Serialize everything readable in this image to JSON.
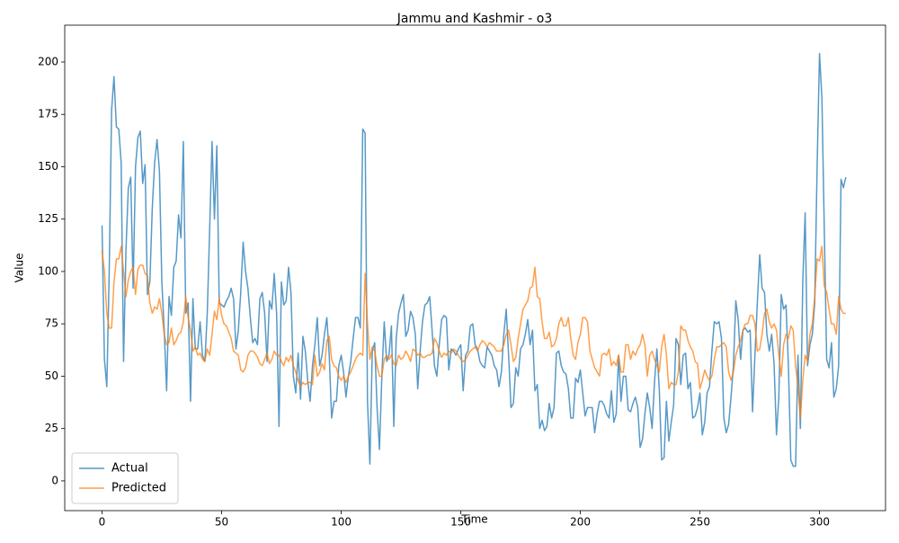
{
  "chart_data": {
    "type": "line",
    "title": "Jammu and Kashmir - o3",
    "x_label": "Time",
    "y_label": "Value",
    "xlim": [
      -15.6,
      327.6
    ],
    "xticks": [
      0,
      50,
      100,
      150,
      200,
      250,
      300
    ],
    "ylim": [
      -14.2,
      217.6
    ],
    "yticks": [
      0,
      25,
      50,
      75,
      100,
      125,
      150,
      175,
      200
    ],
    "grid": false,
    "legend": "lower left",
    "series": [
      {
        "name": "Actual",
        "color": "#1f77b4",
        "values": [
          122,
          58,
          45,
          100,
          177,
          193,
          169,
          168,
          152,
          57,
          110,
          140,
          145,
          92,
          150,
          164,
          167,
          142,
          151,
          89,
          95,
          130,
          152,
          163,
          148,
          95,
          72,
          43,
          88,
          79,
          102,
          105,
          127,
          116,
          162,
          80,
          85,
          38,
          87,
          63,
          63,
          76,
          60,
          57,
          80,
          120,
          162,
          125,
          160,
          85,
          84,
          83,
          86,
          88,
          92,
          87,
          63,
          72,
          90,
          114,
          100,
          92,
          78,
          66,
          68,
          65,
          87,
          90,
          80,
          57,
          86,
          82,
          99,
          80,
          26,
          95,
          84,
          86,
          102,
          90,
          50,
          42,
          61,
          39,
          69,
          62,
          48,
          38,
          55,
          65,
          78,
          55,
          60,
          70,
          78,
          60,
          30,
          38,
          38,
          55,
          60,
          52,
          40,
          50,
          57,
          68,
          78,
          78,
          73,
          168,
          166,
          38,
          8,
          62,
          66,
          35,
          15,
          50,
          76,
          57,
          60,
          74,
          26,
          68,
          80,
          85,
          89,
          69,
          72,
          81,
          78,
          70,
          44,
          62,
          76,
          84,
          85,
          88,
          72,
          55,
          50,
          65,
          77,
          79,
          78,
          53,
          63,
          62,
          60,
          63,
          65,
          43,
          60,
          62,
          74,
          75,
          65,
          63,
          57,
          55,
          54,
          64,
          62,
          60,
          55,
          53,
          45,
          52,
          70,
          82,
          60,
          35,
          37,
          54,
          50,
          63,
          65,
          70,
          77,
          65,
          72,
          43,
          46,
          25,
          29,
          24,
          26,
          37,
          30,
          35,
          61,
          62,
          55,
          52,
          51,
          44,
          30,
          30,
          49,
          47,
          53,
          42,
          31,
          35,
          35,
          35,
          23,
          32,
          38,
          38,
          36,
          32,
          30,
          43,
          28,
          32,
          60,
          38,
          50,
          50,
          34,
          33,
          37,
          40,
          35,
          16,
          20,
          32,
          42,
          35,
          25,
          47,
          63,
          44,
          10,
          11,
          38,
          19,
          28,
          36,
          68,
          65,
          46,
          60,
          61,
          44,
          47,
          30,
          31,
          35,
          42,
          22,
          28,
          42,
          45,
          62,
          76,
          75,
          76,
          68,
          30,
          23,
          27,
          40,
          55,
          86,
          77,
          58,
          72,
          73,
          71,
          72,
          33,
          60,
          85,
          108,
          92,
          90,
          70,
          62,
          70,
          56,
          22,
          40,
          89,
          82,
          84,
          55,
          10,
          7,
          7,
          60,
          25,
          95,
          128,
          55,
          65,
          70,
          85,
          150,
          204,
          183,
          120,
          58,
          54,
          66,
          40,
          44,
          55,
          144,
          140,
          145
        ]
      },
      {
        "name": "Predicted",
        "color": "#ff7f0e",
        "values": [
          110,
          100,
          80,
          73,
          73,
          95,
          106,
          106,
          112,
          100,
          88,
          96,
          100,
          102,
          89,
          101,
          103,
          103,
          99,
          98,
          85,
          80,
          83,
          82,
          87,
          80,
          70,
          65,
          66,
          73,
          65,
          67,
          70,
          71,
          76,
          88,
          78,
          72,
          62,
          64,
          60,
          61,
          58,
          57,
          63,
          60,
          70,
          81,
          77,
          87,
          79,
          75,
          74,
          71,
          68,
          62,
          61,
          60,
          53,
          52,
          54,
          60,
          62,
          62,
          61,
          59,
          56,
          55,
          58,
          61,
          56,
          58,
          62,
          60,
          60,
          57,
          55,
          59,
          57,
          60,
          55,
          52,
          48,
          45,
          47,
          46,
          47,
          47,
          46,
          60,
          50,
          52,
          56,
          53,
          67,
          69,
          58,
          55,
          54,
          50,
          48,
          50,
          47,
          50,
          52,
          55,
          58,
          60,
          61,
          60,
          99,
          75,
          58,
          64,
          62,
          55,
          50,
          50,
          58,
          60,
          58,
          60,
          56,
          55,
          60,
          58,
          59,
          62,
          60,
          57,
          63,
          62,
          60,
          61,
          59,
          59,
          60,
          60,
          61,
          68,
          66,
          62,
          59,
          61,
          60,
          62,
          61,
          63,
          62,
          60,
          58,
          57,
          58,
          60,
          62,
          63,
          64,
          62,
          65,
          67,
          66,
          64,
          66,
          65,
          64,
          62,
          62,
          62,
          65,
          70,
          72,
          65,
          57,
          59,
          68,
          75,
          82,
          84,
          86,
          92,
          93,
          102,
          88,
          87,
          76,
          68,
          68,
          71,
          64,
          65,
          68,
          75,
          78,
          74,
          74,
          78,
          68,
          60,
          58,
          66,
          70,
          78,
          78,
          76,
          62,
          58,
          54,
          52,
          50,
          60,
          61,
          60,
          63,
          55,
          57,
          55,
          60,
          52,
          52,
          65,
          65,
          58,
          62,
          60,
          63,
          65,
          70,
          65,
          50,
          60,
          62,
          58,
          55,
          52,
          64,
          70,
          60,
          44,
          47,
          46,
          46,
          52,
          74,
          72,
          72,
          67,
          64,
          62,
          57,
          56,
          44,
          48,
          53,
          50,
          48,
          50,
          58,
          64,
          64,
          65,
          66,
          64,
          52,
          48,
          52,
          60,
          64,
          67,
          72,
          75,
          75,
          79,
          79,
          75,
          62,
          63,
          70,
          80,
          82,
          76,
          73,
          75,
          72,
          60,
          50,
          65,
          70,
          68,
          74,
          72,
          55,
          45,
          30,
          48,
          60,
          57,
          70,
          75,
          88,
          106,
          105,
          112,
          93,
          90,
          82,
          75,
          75,
          70,
          88,
          82,
          80,
          80
        ]
      }
    ]
  }
}
